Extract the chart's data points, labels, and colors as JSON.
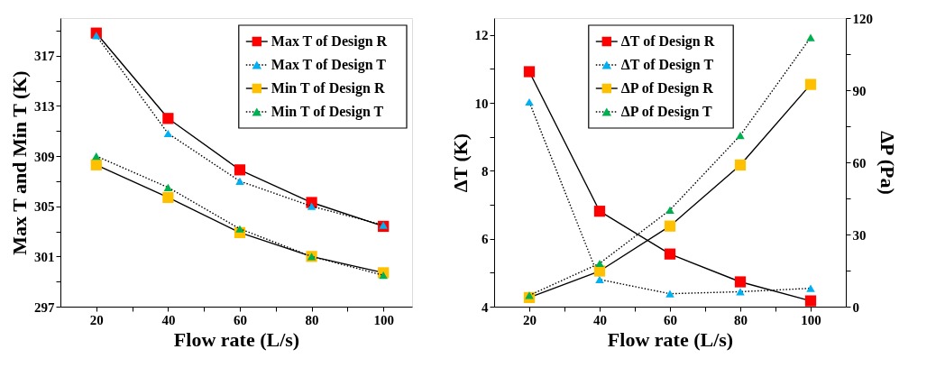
{
  "chart_data": [
    {
      "type": "line",
      "xlabel": "Flow rate (L/s)",
      "ylabel": "Max T and Min T (K)",
      "x": [
        20,
        40,
        60,
        80,
        100
      ],
      "xlim": [
        10,
        108
      ],
      "xticks": [
        20,
        {
          "value": 30,
          "label": null
        },
        40,
        {
          "value": 50,
          "label": null
        },
        60,
        {
          "value": 70,
          "label": null
        },
        80,
        {
          "value": 90,
          "label": null
        },
        100
      ],
      "ylim": [
        297,
        320
      ],
      "yticks": [
        297,
        {
          "value": 299,
          "label": null
        },
        301,
        {
          "value": 303,
          "label": null
        },
        305,
        {
          "value": 307,
          "label": null
        },
        309,
        {
          "value": 311,
          "label": null
        },
        313,
        {
          "value": 315,
          "label": null
        },
        317,
        {
          "value": 319,
          "label": null
        }
      ],
      "legend": "top right",
      "series": [
        {
          "name": "Max T of Design R",
          "color": "#ff0000",
          "marker": "square",
          "line_style": "solid",
          "values": [
            318.8,
            312.0,
            307.9,
            305.3,
            303.4
          ]
        },
        {
          "name": "Max T of Design T",
          "color": "#00b0f0",
          "marker": "triangle",
          "line_style": "dotted",
          "values": [
            318.6,
            310.8,
            307.0,
            305.0,
            303.5
          ]
        },
        {
          "name": "Min T of Design R",
          "color": "#ffc000",
          "marker": "square",
          "line_style": "solid",
          "values": [
            308.3,
            305.7,
            302.9,
            301.0,
            299.7
          ]
        },
        {
          "name": "Min T of Design T",
          "color": "#00b050",
          "marker": "triangle",
          "line_style": "dotted",
          "values": [
            309.0,
            306.5,
            303.2,
            301.0,
            299.5
          ]
        }
      ]
    },
    {
      "type": "line",
      "xlabel": "Flow rate (L/s)",
      "ylabel": "ΔT (K)",
      "y2label": "ΔP (Pa)",
      "x": [
        20,
        40,
        60,
        80,
        100
      ],
      "xlim": [
        10,
        110
      ],
      "xticks": [
        20,
        {
          "value": 30,
          "label": null
        },
        40,
        {
          "value": 50,
          "label": null
        },
        60,
        {
          "value": 70,
          "label": null
        },
        80,
        {
          "value": 90,
          "label": null
        },
        100
      ],
      "ylim": [
        4,
        12.5
      ],
      "yticks": [
        4,
        {
          "value": 5,
          "label": null
        },
        6,
        {
          "value": 7,
          "label": null
        },
        8,
        {
          "value": 9,
          "label": null
        },
        10,
        {
          "value": 11,
          "label": null
        },
        12
      ],
      "y2lim": [
        0,
        120
      ],
      "y2ticks": [
        0,
        {
          "value": 15,
          "label": null
        },
        30,
        {
          "value": 45,
          "label": null
        },
        60,
        {
          "value": 75,
          "label": null
        },
        90,
        {
          "value": 105,
          "label": null
        },
        120
      ],
      "legend": "top",
      "series": [
        {
          "name": "ΔT of Design R",
          "color": "#ff0000",
          "marker": "square",
          "line_style": "solid",
          "values": [
            10.92,
            6.81,
            5.55,
            4.73,
            4.17
          ]
        },
        {
          "name": "ΔT of Design T",
          "color": "#00b0f0",
          "marker": "triangle",
          "line_style": "dotted",
          "values": [
            10.03,
            4.8,
            4.38,
            4.44,
            4.54
          ]
        },
        {
          "name": "ΔP of Design R",
          "color": "#ffc000",
          "marker": "square",
          "line_style": "solid",
          "axis": "y2",
          "values": [
            3.8,
            14.8,
            33.5,
            58.9,
            92.4
          ]
        },
        {
          "name": "ΔP of Design T",
          "color": "#00b050",
          "marker": "triangle",
          "line_style": "dotted",
          "axis": "y2",
          "values": [
            4.7,
            18.0,
            40.2,
            71.2,
            111.9
          ]
        }
      ]
    }
  ]
}
